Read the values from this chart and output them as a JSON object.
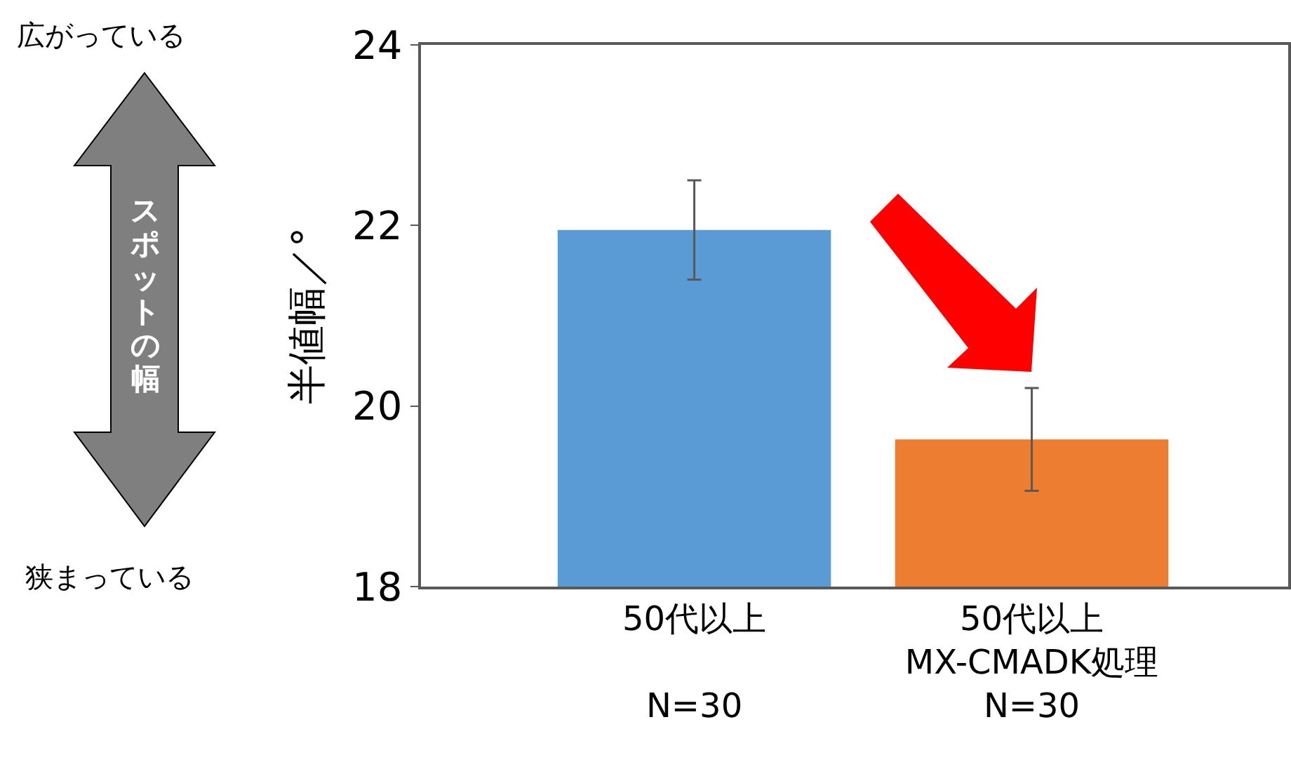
{
  "chart_data": {
    "type": "bar",
    "ylabel": "半値幅／°",
    "categories": [
      "50代以上\n\nN=30",
      "50代以上\nMX-CMADK処理\nN=30"
    ],
    "values": [
      21.95,
      19.63
    ],
    "colors": [
      "#5b9bd5",
      "#ed7d31"
    ],
    "errors": [
      0.55,
      0.57
    ],
    "ylim": [
      18,
      24
    ],
    "yticks": [
      18,
      20,
      22,
      24
    ],
    "grid": false,
    "annotations": [
      "広がっている",
      "狭まっている",
      "スポットの幅"
    ]
  }
}
